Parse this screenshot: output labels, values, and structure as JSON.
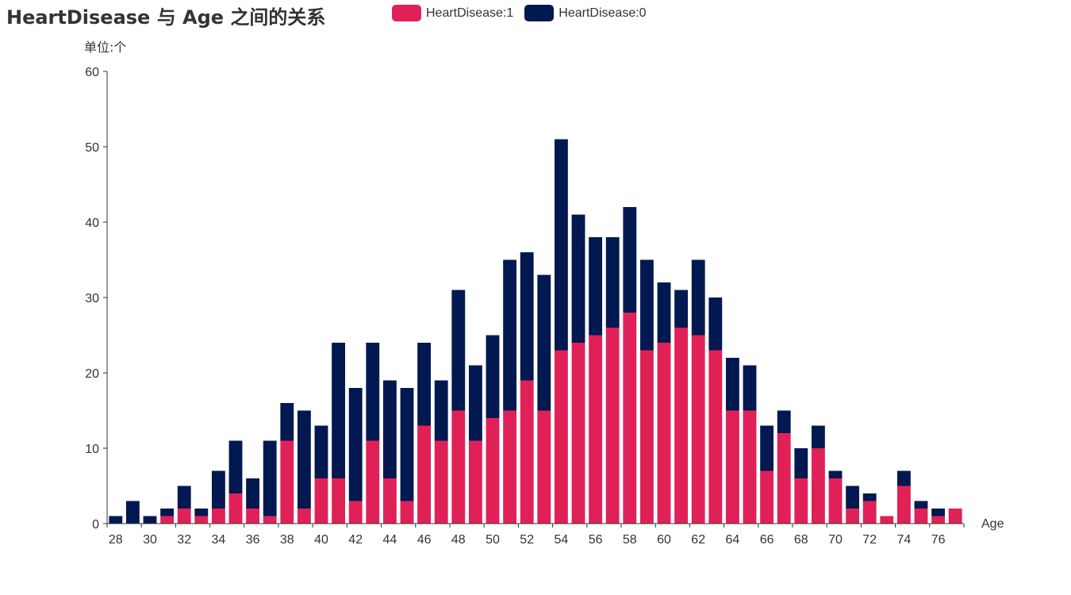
{
  "colors": {
    "series1": "#e02157",
    "series0": "#011850",
    "axis": "#333333"
  },
  "chart_data": {
    "type": "bar",
    "stacked": true,
    "title": "HeartDisease 与 Age 之间的关系",
    "ylabel": "单位:个",
    "xlabel": "Age",
    "ylim": [
      0,
      60
    ],
    "yticks": [
      0,
      10,
      20,
      30,
      40,
      50,
      60
    ],
    "legend_position": "top",
    "categories": [
      28,
      29,
      30,
      31,
      32,
      33,
      34,
      35,
      36,
      37,
      38,
      39,
      40,
      41,
      42,
      43,
      44,
      45,
      46,
      47,
      48,
      49,
      50,
      51,
      52,
      53,
      54,
      55,
      56,
      57,
      58,
      59,
      60,
      61,
      62,
      63,
      64,
      65,
      66,
      67,
      68,
      69,
      70,
      71,
      72,
      73,
      74,
      75,
      76,
      77
    ],
    "xtick_labels": [
      "28",
      "30",
      "32",
      "34",
      "36",
      "38",
      "40",
      "42",
      "44",
      "46",
      "48",
      "50",
      "52",
      "54",
      "56",
      "58",
      "60",
      "62",
      "64",
      "66",
      "68",
      "70",
      "72",
      "74",
      "76"
    ],
    "series": [
      {
        "name": "HeartDisease:1",
        "color_key": "series1",
        "values": [
          0,
          0,
          0,
          1,
          2,
          1,
          2,
          4,
          2,
          1,
          11,
          2,
          6,
          6,
          3,
          11,
          6,
          3,
          13,
          11,
          15,
          11,
          14,
          15,
          19,
          15,
          23,
          24,
          25,
          26,
          28,
          23,
          24,
          26,
          25,
          23,
          15,
          15,
          7,
          12,
          6,
          10,
          6,
          2,
          3,
          1,
          5,
          2,
          1,
          2
        ]
      },
      {
        "name": "HeartDisease:0",
        "color_key": "series0",
        "values": [
          1,
          3,
          1,
          1,
          3,
          1,
          5,
          7,
          4,
          10,
          5,
          13,
          7,
          18,
          15,
          13,
          13,
          15,
          11,
          8,
          16,
          10,
          11,
          20,
          17,
          18,
          28,
          17,
          13,
          12,
          14,
          12,
          8,
          5,
          10,
          7,
          7,
          6,
          6,
          3,
          4,
          3,
          1,
          3,
          1,
          0,
          2,
          1,
          1,
          0
        ]
      }
    ]
  }
}
